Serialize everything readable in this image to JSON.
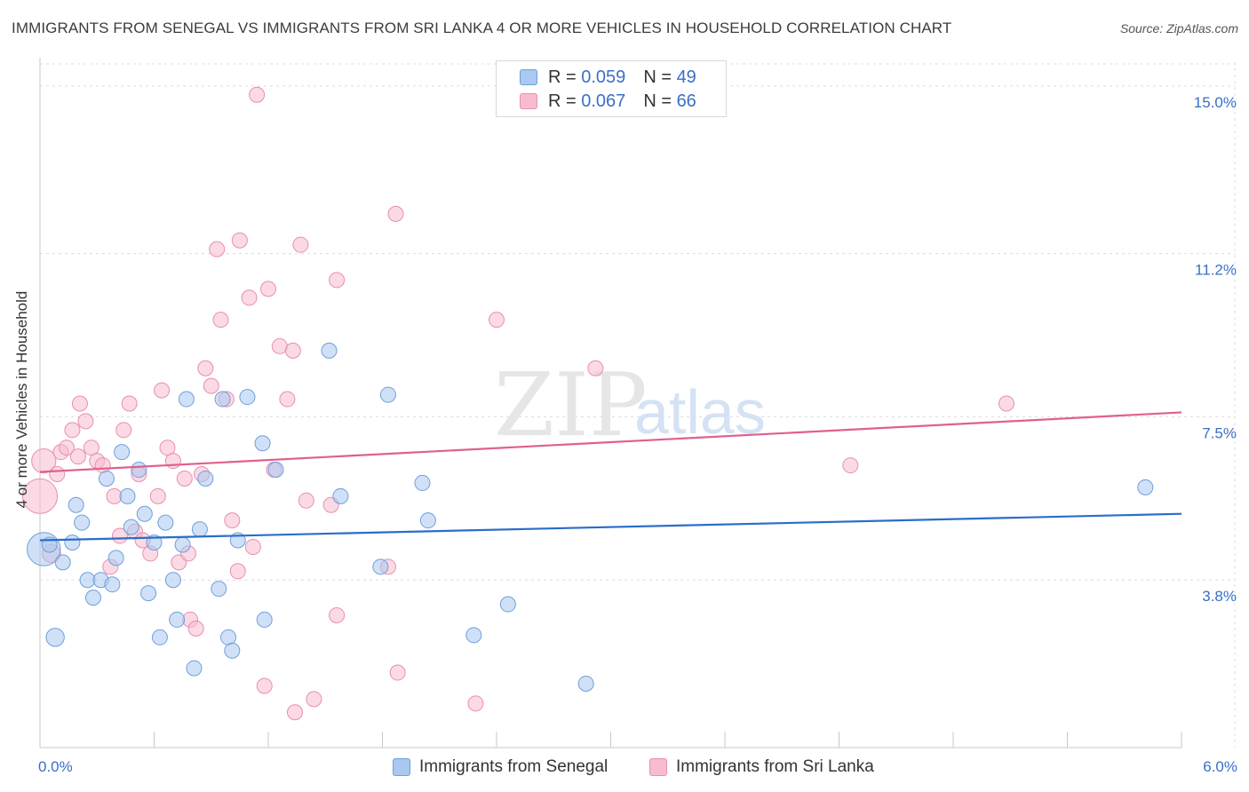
{
  "title": "IMMIGRANTS FROM SENEGAL VS IMMIGRANTS FROM SRI LANKA 4 OR MORE VEHICLES IN HOUSEHOLD CORRELATION CHART",
  "source": "Source: ZipAtlas.com",
  "watermark": {
    "zip": "ZIP",
    "atlas": "atlas"
  },
  "legend": {
    "senegal": {
      "r_label": "R = ",
      "r_value": "0.059",
      "n_label": "N = ",
      "n_value": "49"
    },
    "srilanka": {
      "r_label": "R = ",
      "r_value": "0.067",
      "n_label": "N = ",
      "n_value": "66"
    }
  },
  "colors": {
    "senegal_fill": "#aac8f0",
    "senegal_stroke": "#6f9fdc",
    "senegal_line": "#2a6dc9",
    "srilanka_fill": "#f8bcd0",
    "srilanka_stroke": "#e88fae",
    "srilanka_line": "#e0608c",
    "tick_label": "#3a6fc7",
    "grid": "#dcdcdc"
  },
  "chart_data": {
    "type": "scatter",
    "title": "IMMIGRANTS FROM SENEGAL VS IMMIGRANTS FROM SRI LANKA 4 OR MORE VEHICLES IN HOUSEHOLD CORRELATION CHART",
    "xlabel": "",
    "ylabel": "4 or more Vehicles in Household",
    "xlim": [
      0,
      6.0
    ],
    "ylim": [
      0,
      15.5
    ],
    "x_tick_labels": [
      "0.0%",
      "6.0%"
    ],
    "y_ticks": [
      3.8,
      7.5,
      11.2,
      15.0
    ],
    "y_tick_labels": [
      "3.8%",
      "7.5%",
      "11.2%",
      "15.0%"
    ],
    "grid": true,
    "legend_position": "top-center",
    "series": [
      {
        "name": "Immigrants from Senegal",
        "trend": {
          "x": [
            0,
            6.0
          ],
          "y": [
            4.7,
            5.3
          ]
        },
        "points": [
          {
            "x": 0.02,
            "y": 4.5,
            "s": 2.2
          },
          {
            "x": 0.05,
            "y": 4.6,
            "s": 1.0
          },
          {
            "x": 0.08,
            "y": 2.5,
            "s": 1.2
          },
          {
            "x": 0.12,
            "y": 4.2,
            "s": 1.0
          },
          {
            "x": 0.17,
            "y": 4.65,
            "s": 1.0
          },
          {
            "x": 0.19,
            "y": 5.5,
            "s": 1.0
          },
          {
            "x": 0.22,
            "y": 5.1,
            "s": 1.0
          },
          {
            "x": 0.25,
            "y": 3.8,
            "s": 1.0
          },
          {
            "x": 0.28,
            "y": 3.4,
            "s": 1.0
          },
          {
            "x": 0.32,
            "y": 3.8,
            "s": 1.0
          },
          {
            "x": 0.35,
            "y": 6.1,
            "s": 1.0
          },
          {
            "x": 0.38,
            "y": 3.7,
            "s": 1.0
          },
          {
            "x": 0.4,
            "y": 4.3,
            "s": 1.0
          },
          {
            "x": 0.43,
            "y": 6.7,
            "s": 1.0
          },
          {
            "x": 0.46,
            "y": 5.7,
            "s": 1.0
          },
          {
            "x": 0.48,
            "y": 5.0,
            "s": 1.0
          },
          {
            "x": 0.52,
            "y": 6.3,
            "s": 1.0
          },
          {
            "x": 0.55,
            "y": 5.3,
            "s": 1.0
          },
          {
            "x": 0.57,
            "y": 3.5,
            "s": 1.0
          },
          {
            "x": 0.6,
            "y": 4.65,
            "s": 1.0
          },
          {
            "x": 0.63,
            "y": 2.5,
            "s": 1.0
          },
          {
            "x": 0.66,
            "y": 5.1,
            "s": 1.0
          },
          {
            "x": 0.7,
            "y": 3.8,
            "s": 1.0
          },
          {
            "x": 0.72,
            "y": 2.9,
            "s": 1.0
          },
          {
            "x": 0.75,
            "y": 4.6,
            "s": 1.0
          },
          {
            "x": 0.77,
            "y": 7.9,
            "s": 1.0
          },
          {
            "x": 0.81,
            "y": 1.8,
            "s": 1.0
          },
          {
            "x": 0.84,
            "y": 4.95,
            "s": 1.0
          },
          {
            "x": 0.87,
            "y": 6.1,
            "s": 1.0
          },
          {
            "x": 0.94,
            "y": 3.6,
            "s": 1.0
          },
          {
            "x": 0.96,
            "y": 7.9,
            "s": 1.0
          },
          {
            "x": 0.99,
            "y": 2.5,
            "s": 1.0
          },
          {
            "x": 1.01,
            "y": 2.2,
            "s": 1.0
          },
          {
            "x": 1.04,
            "y": 4.7,
            "s": 1.0
          },
          {
            "x": 1.09,
            "y": 7.95,
            "s": 1.0
          },
          {
            "x": 1.17,
            "y": 6.9,
            "s": 1.0
          },
          {
            "x": 1.18,
            "y": 2.9,
            "s": 1.0
          },
          {
            "x": 1.24,
            "y": 6.3,
            "s": 1.0
          },
          {
            "x": 1.52,
            "y": 9.0,
            "s": 1.0
          },
          {
            "x": 1.58,
            "y": 5.7,
            "s": 1.0
          },
          {
            "x": 1.79,
            "y": 4.1,
            "s": 1.0
          },
          {
            "x": 1.83,
            "y": 8.0,
            "s": 1.0
          },
          {
            "x": 2.01,
            "y": 6.0,
            "s": 1.0
          },
          {
            "x": 2.04,
            "y": 5.15,
            "s": 1.0
          },
          {
            "x": 2.28,
            "y": 2.55,
            "s": 1.0
          },
          {
            "x": 2.46,
            "y": 3.25,
            "s": 1.0
          },
          {
            "x": 2.87,
            "y": 1.45,
            "s": 1.0
          },
          {
            "x": 5.81,
            "y": 5.9,
            "s": 1.0
          }
        ]
      },
      {
        "name": "Immigrants from Sri Lanka",
        "trend": {
          "x": [
            0,
            6.0
          ],
          "y": [
            6.25,
            7.6
          ]
        },
        "points": [
          {
            "x": 0.0,
            "y": 5.7,
            "s": 2.3
          },
          {
            "x": 0.02,
            "y": 6.5,
            "s": 1.6
          },
          {
            "x": 0.06,
            "y": 4.4,
            "s": 1.2
          },
          {
            "x": 0.09,
            "y": 6.2,
            "s": 1.0
          },
          {
            "x": 0.11,
            "y": 6.7,
            "s": 1.0
          },
          {
            "x": 0.14,
            "y": 6.8,
            "s": 1.0
          },
          {
            "x": 0.17,
            "y": 7.2,
            "s": 1.0
          },
          {
            "x": 0.2,
            "y": 6.6,
            "s": 1.0
          },
          {
            "x": 0.21,
            "y": 7.8,
            "s": 1.0
          },
          {
            "x": 0.24,
            "y": 7.4,
            "s": 1.0
          },
          {
            "x": 0.27,
            "y": 6.8,
            "s": 1.0
          },
          {
            "x": 0.3,
            "y": 6.5,
            "s": 1.0
          },
          {
            "x": 0.33,
            "y": 6.4,
            "s": 1.0
          },
          {
            "x": 0.37,
            "y": 4.1,
            "s": 1.0
          },
          {
            "x": 0.39,
            "y": 5.7,
            "s": 1.0
          },
          {
            "x": 0.42,
            "y": 4.8,
            "s": 1.0
          },
          {
            "x": 0.44,
            "y": 7.2,
            "s": 1.0
          },
          {
            "x": 0.47,
            "y": 7.8,
            "s": 1.0
          },
          {
            "x": 0.5,
            "y": 4.9,
            "s": 1.0
          },
          {
            "x": 0.52,
            "y": 6.2,
            "s": 1.0
          },
          {
            "x": 0.54,
            "y": 4.7,
            "s": 1.0
          },
          {
            "x": 0.58,
            "y": 4.4,
            "s": 1.0
          },
          {
            "x": 0.62,
            "y": 5.7,
            "s": 1.0
          },
          {
            "x": 0.64,
            "y": 8.1,
            "s": 1.0
          },
          {
            "x": 0.67,
            "y": 6.8,
            "s": 1.0
          },
          {
            "x": 0.7,
            "y": 6.5,
            "s": 1.0
          },
          {
            "x": 0.73,
            "y": 4.2,
            "s": 1.0
          },
          {
            "x": 0.76,
            "y": 6.1,
            "s": 1.0
          },
          {
            "x": 0.78,
            "y": 4.4,
            "s": 1.0
          },
          {
            "x": 0.79,
            "y": 2.9,
            "s": 1.0
          },
          {
            "x": 0.82,
            "y": 2.7,
            "s": 1.0
          },
          {
            "x": 0.85,
            "y": 6.2,
            "s": 1.0
          },
          {
            "x": 0.87,
            "y": 8.6,
            "s": 1.0
          },
          {
            "x": 0.9,
            "y": 8.2,
            "s": 1.0
          },
          {
            "x": 0.93,
            "y": 11.3,
            "s": 1.0
          },
          {
            "x": 0.95,
            "y": 9.7,
            "s": 1.0
          },
          {
            "x": 0.98,
            "y": 7.9,
            "s": 1.0
          },
          {
            "x": 1.01,
            "y": 5.15,
            "s": 1.0
          },
          {
            "x": 1.04,
            "y": 4.0,
            "s": 1.0
          },
          {
            "x": 1.05,
            "y": 11.5,
            "s": 1.0
          },
          {
            "x": 1.1,
            "y": 10.2,
            "s": 1.0
          },
          {
            "x": 1.12,
            "y": 4.55,
            "s": 1.0
          },
          {
            "x": 1.14,
            "y": 14.8,
            "s": 1.0
          },
          {
            "x": 1.18,
            "y": 1.4,
            "s": 1.0
          },
          {
            "x": 1.2,
            "y": 10.4,
            "s": 1.0
          },
          {
            "x": 1.23,
            "y": 6.3,
            "s": 1.0
          },
          {
            "x": 1.26,
            "y": 9.1,
            "s": 1.0
          },
          {
            "x": 1.3,
            "y": 7.9,
            "s": 1.0
          },
          {
            "x": 1.33,
            "y": 9.0,
            "s": 1.0
          },
          {
            "x": 1.34,
            "y": 0.8,
            "s": 1.0
          },
          {
            "x": 1.37,
            "y": 11.4,
            "s": 1.0
          },
          {
            "x": 1.4,
            "y": 5.6,
            "s": 1.0
          },
          {
            "x": 1.44,
            "y": 1.1,
            "s": 1.0
          },
          {
            "x": 1.53,
            "y": 5.5,
            "s": 1.0
          },
          {
            "x": 1.56,
            "y": 10.6,
            "s": 1.0
          },
          {
            "x": 1.56,
            "y": 3.0,
            "s": 1.0
          },
          {
            "x": 1.83,
            "y": 4.1,
            "s": 1.0
          },
          {
            "x": 1.87,
            "y": 12.1,
            "s": 1.0
          },
          {
            "x": 1.88,
            "y": 1.7,
            "s": 1.0
          },
          {
            "x": 2.29,
            "y": 1.0,
            "s": 1.0
          },
          {
            "x": 2.4,
            "y": 9.7,
            "s": 1.0
          },
          {
            "x": 2.92,
            "y": 8.6,
            "s": 1.0
          },
          {
            "x": 4.26,
            "y": 6.4,
            "s": 1.0
          },
          {
            "x": 5.08,
            "y": 7.8,
            "s": 1.0
          }
        ]
      }
    ]
  }
}
